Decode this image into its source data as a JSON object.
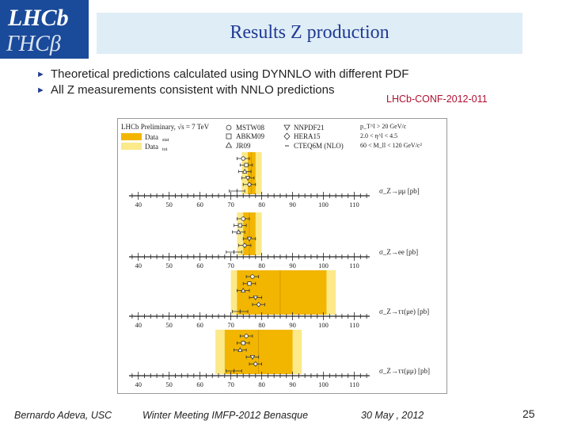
{
  "logo": {
    "text_top": "LHCb",
    "text_bottom": "ΓHCβ",
    "bg_color": "#1a4a9a"
  },
  "slide": {
    "title": "Results Z production",
    "bullets": [
      "Theoretical predictions calculated using DYNNLO with different PDF",
      "All Z measurements consistent with NNLO predictions"
    ],
    "reference": "LHCb-CONF-2012-011"
  },
  "figure": {
    "header": "LHCb Preliminary, √s = 7 TeV",
    "legend_data": [
      "Data",
      "Data"
    ],
    "legend_data_subscripts": [
      "stat",
      "tot"
    ],
    "legend_pdfs": [
      "MSTW08",
      "ABKM09",
      "JR09",
      "NNPDF21",
      "HERA15",
      "CTEQ6M (NLO)"
    ],
    "cuts": [
      "p_T^l > 20 GeV/c",
      "2.0 < η^l < 4.5",
      "60 < M_ll < 120 GeV/c²"
    ],
    "axis_ticks": [
      "40",
      "50",
      "60",
      "70",
      "80",
      "90",
      "100",
      "110"
    ],
    "panel_labels": [
      "σ_Z→μμ [pb]",
      "σ_Z→ee [pb]",
      "σ_Z→ττ(μe) [pb]",
      "σ_Z→ττ(μμ) [pb]"
    ]
  },
  "chart_data": {
    "type": "scatter",
    "title": "LHCb Preliminary, √s = 7 TeV",
    "xlabel": "σ [pb]",
    "xlim": [
      37,
      115
    ],
    "series_names": [
      "MSTW08",
      "ABKM09",
      "JR09",
      "NNPDF21",
      "HERA15",
      "CTEQ6M (NLO)"
    ],
    "panels": [
      {
        "label": "σ_Z→μμ [pb]",
        "data_center": 76.7,
        "stat_band": [
          75.5,
          78.0
        ],
        "tot_band": [
          73.5,
          80.0
        ],
        "predictions": [
          74.0,
          75.0,
          74.5,
          75.5,
          76.0,
          72.0
        ],
        "errors": [
          2.0,
          2.0,
          2.0,
          2.0,
          2.0,
          2.5
        ]
      },
      {
        "label": "σ_Z→ee [pb]",
        "data_center": 76.0,
        "stat_band": [
          74.0,
          78.0
        ],
        "tot_band": [
          72.0,
          80.0
        ],
        "predictions": [
          74.0,
          73.0,
          72.5,
          76.0,
          74.5,
          71.0
        ],
        "errors": [
          2.0,
          2.0,
          2.0,
          2.0,
          2.0,
          2.5
        ]
      },
      {
        "label": "σ_Z→ττ(μe) [pb]",
        "data_center": 86.0,
        "stat_band": [
          72.0,
          101.0
        ],
        "tot_band": [
          70.0,
          104.0
        ],
        "predictions": [
          77.0,
          76.0,
          74.0,
          78.0,
          79.0,
          73.0
        ],
        "errors": [
          2.0,
          2.0,
          2.0,
          2.0,
          2.0,
          2.5
        ]
      },
      {
        "label": "σ_Z→ττ(μμ) [pb]",
        "data_center": 79.0,
        "stat_band": [
          68.0,
          90.0
        ],
        "tot_band": [
          65.0,
          93.0
        ],
        "predictions": [
          75.0,
          74.0,
          73.0,
          77.0,
          78.0,
          71.0
        ],
        "errors": [
          2.0,
          2.0,
          2.0,
          2.0,
          2.0,
          2.5
        ]
      }
    ],
    "colors": {
      "stat_band": "#f2b600",
      "tot_band": "#fbe98a"
    }
  },
  "footer": {
    "author": "Bernardo Adeva, USC",
    "meeting": "Winter Meeting IMFP-2012  Benasque",
    "date": "30 May , 2012",
    "page_number": "25"
  }
}
